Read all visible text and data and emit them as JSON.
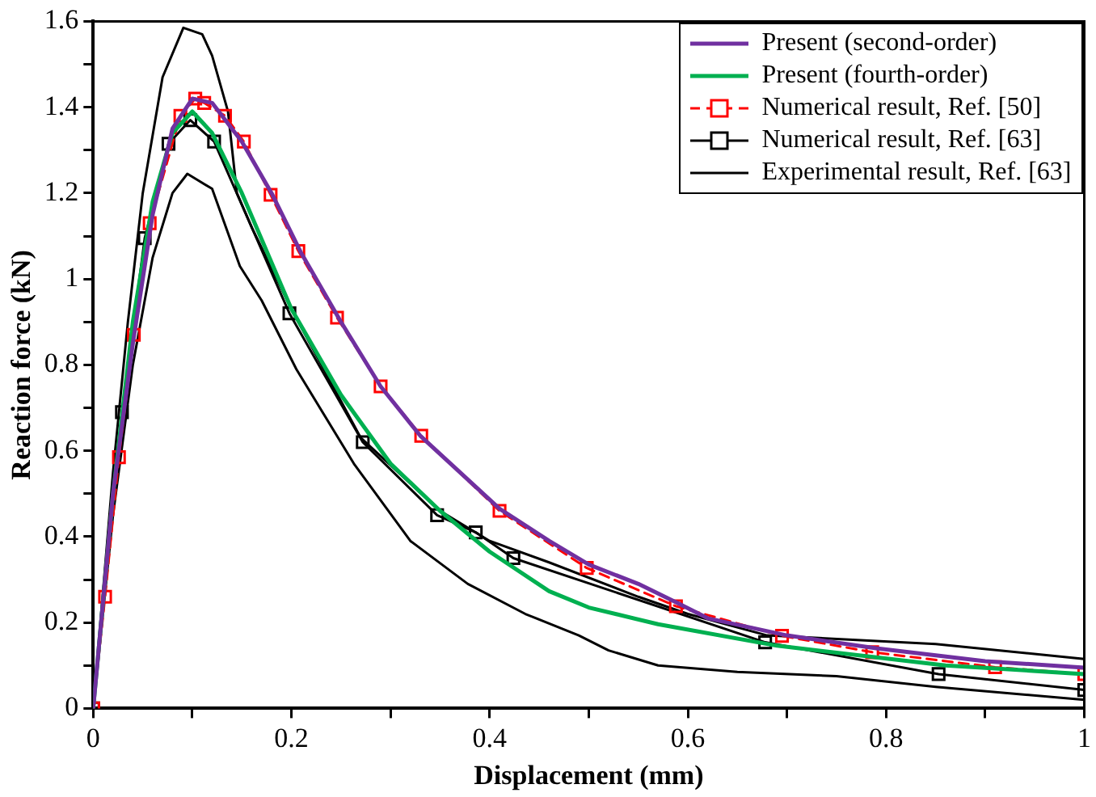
{
  "chart_data": {
    "type": "line",
    "xlabel": "Displacement (mm)",
    "ylabel": "Reaction force (kN)",
    "xlim": [
      0,
      1
    ],
    "ylim": [
      0,
      1.6
    ],
    "xticks": [
      0,
      {
        "value": 0.1,
        "label": null
      },
      0.2,
      {
        "value": 0.3,
        "label": null
      },
      0.4,
      {
        "value": 0.5,
        "label": null
      },
      0.6,
      {
        "value": 0.7,
        "label": null
      },
      0.8,
      {
        "value": 0.9,
        "label": null
      },
      1
    ],
    "yticks": [
      0,
      {
        "value": 0.1,
        "label": null
      },
      0.2,
      {
        "value": 0.3,
        "label": null
      },
      0.4,
      {
        "value": 0.5,
        "label": null
      },
      0.6,
      {
        "value": 0.7,
        "label": null
      },
      0.8,
      {
        "value": 0.9,
        "label": null
      },
      1,
      {
        "value": 1.1,
        "label": null
      },
      1.2,
      {
        "value": 1.3,
        "label": null
      },
      1.4,
      {
        "value": 1.5,
        "label": null
      },
      1.6
    ],
    "grid": false,
    "legend": "top right",
    "series": [
      {
        "name": "Present (second-order)",
        "color": "#7030a0",
        "marker": "none",
        "line_style": "solid",
        "x": [
          0,
          0.02,
          0.04,
          0.06,
          0.08,
          0.1,
          0.12,
          0.15,
          0.18,
          0.21,
          0.25,
          0.29,
          0.33,
          0.41,
          0.46,
          0.5,
          0.55,
          0.59,
          0.62,
          0.7,
          0.79,
          0.9,
          1
        ],
        "values": [
          0,
          0.5,
          0.85,
          1.15,
          1.35,
          1.42,
          1.41,
          1.32,
          1.2,
          1.06,
          0.9,
          0.75,
          0.635,
          0.465,
          0.39,
          0.335,
          0.29,
          0.245,
          0.21,
          0.17,
          0.14,
          0.11,
          0.095
        ]
      },
      {
        "name": "Present (fourth-order)",
        "color": "#00b050",
        "marker": "none",
        "line_style": "solid",
        "x": [
          0,
          0.02,
          0.04,
          0.06,
          0.08,
          0.1,
          0.12,
          0.15,
          0.2,
          0.25,
          0.3,
          0.35,
          0.4,
          0.46,
          0.5,
          0.57,
          0.69,
          0.86,
          1
        ],
        "values": [
          0,
          0.5,
          0.9,
          1.18,
          1.34,
          1.39,
          1.34,
          1.2,
          0.93,
          0.73,
          0.57,
          0.46,
          0.365,
          0.273,
          0.235,
          0.196,
          0.146,
          0.1,
          0.08
        ]
      },
      {
        "name": "Numerical result, Ref. [50]",
        "color": "#ff0000",
        "marker": "square",
        "line_style": "dashed",
        "x": [
          0,
          0.012,
          0.026,
          0.041,
          0.057,
          0.088,
          0.103,
          0.112,
          0.133,
          0.152,
          0.179,
          0.207,
          0.246,
          0.29,
          0.331,
          0.41,
          0.498,
          0.588,
          0.695,
          0.786,
          0.91,
          1
        ],
        "values": [
          0,
          0.26,
          0.585,
          0.87,
          1.13,
          1.38,
          1.42,
          1.41,
          1.38,
          1.32,
          1.196,
          1.065,
          0.91,
          0.75,
          0.635,
          0.46,
          0.327,
          0.238,
          0.169,
          0.131,
          0.096,
          0.08
        ]
      },
      {
        "name": "Numerical result, Ref. [63]",
        "color": "#000000",
        "marker": "square",
        "line_style": "solid",
        "x": [
          0,
          0.029,
          0.052,
          0.076,
          0.098,
          0.122,
          0.198,
          0.272,
          0.347,
          0.386,
          0.424,
          0.678,
          0.853,
          1
        ],
        "values": [
          0,
          0.69,
          1.095,
          1.315,
          1.37,
          1.32,
          0.92,
          0.62,
          0.45,
          0.41,
          0.35,
          0.154,
          0.08,
          0.043
        ]
      },
      {
        "name": "Experimental result, Ref. [63]",
        "color": "#000000",
        "marker": "none",
        "line_style": "solid",
        "x": [
          0,
          0.02,
          0.035,
          0.05,
          0.07,
          0.091,
          0.11,
          0.12,
          0.136,
          0.145,
          0.16,
          0.2,
          0.27,
          0.35,
          0.4,
          0.46,
          0.55,
          0.6,
          0.68,
          0.85,
          1
        ],
        "values": [
          0,
          0.55,
          0.9,
          1.2,
          1.47,
          1.585,
          1.57,
          1.52,
          1.39,
          1.2,
          1.12,
          0.93,
          0.63,
          0.46,
          0.39,
          0.34,
          0.26,
          0.22,
          0.17,
          0.15,
          0.115
        ]
      },
      {
        "color": "#000000",
        "marker": "none",
        "line_style": "solid",
        "x": [
          0,
          0.02,
          0.04,
          0.06,
          0.08,
          0.095,
          0.12,
          0.148,
          0.17,
          0.205,
          0.263,
          0.32,
          0.378,
          0.436,
          0.49,
          0.52,
          0.57,
          0.65,
          0.75,
          0.85,
          1
        ],
        "values": [
          0,
          0.45,
          0.8,
          1.05,
          1.2,
          1.245,
          1.21,
          1.03,
          0.95,
          0.79,
          0.57,
          0.39,
          0.29,
          0.22,
          0.17,
          0.135,
          0.1,
          0.085,
          0.075,
          0.05,
          0.02
        ]
      }
    ]
  }
}
